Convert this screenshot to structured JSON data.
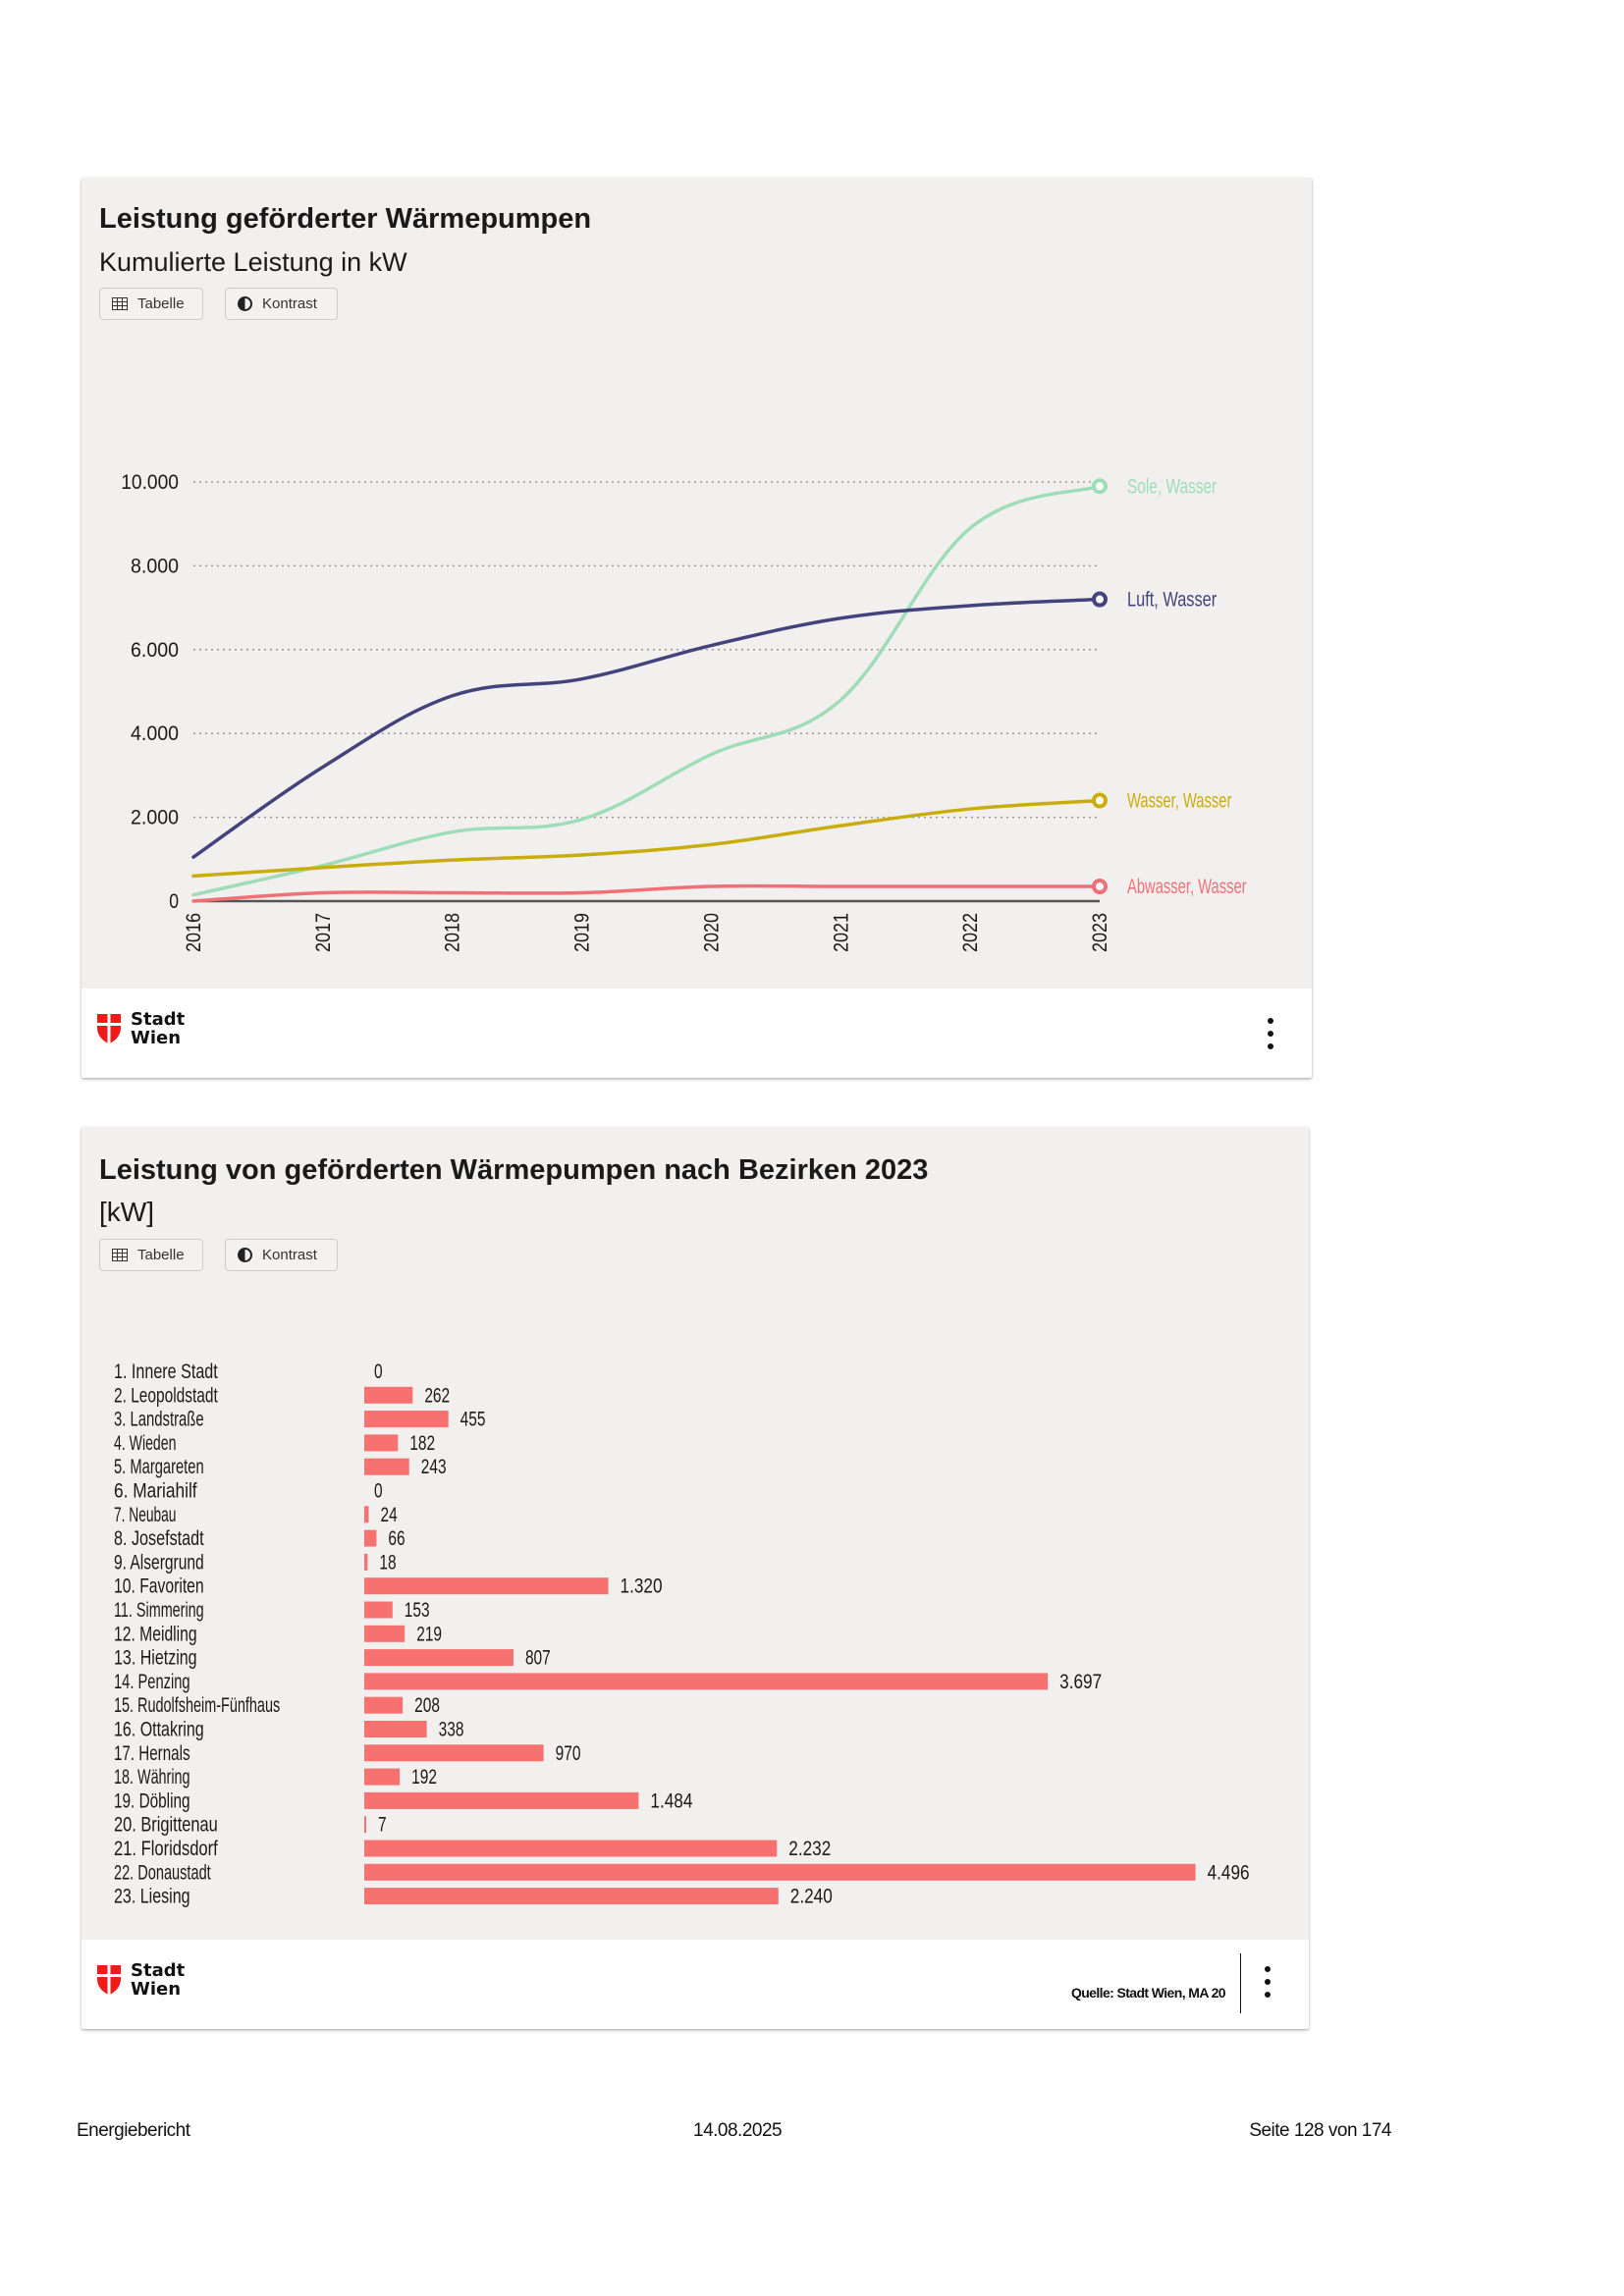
{
  "card1": {
    "title": "Leistung geförderter Wärmepumpen",
    "subtitle": "Kumulierte Leistung in kW",
    "buttons": {
      "table_label": "Tabelle",
      "contrast_label": "Kontrast"
    },
    "logo": {
      "line1": "Stadt",
      "line2": "Wien"
    },
    "menu_icon": "more-vertical-icon"
  },
  "card2": {
    "title": "Leistung von geförderten Wärmepumpen nach Bezirken 2023",
    "subtitle": "[kW]",
    "buttons": {
      "table_label": "Tabelle",
      "contrast_label": "Kontrast"
    },
    "logo": {
      "line1": "Stadt",
      "line2": "Wien"
    },
    "source": "Quelle: Stadt Wien, MA 20",
    "menu_icon": "more-vertical-icon"
  },
  "page_footer": {
    "left": "Energiebericht",
    "center": "14.08.2025",
    "right": "Seite 128 von 174"
  },
  "chart_data": [
    {
      "type": "line",
      "title": "Leistung geförderter Wärmepumpen",
      "subtitle": "Kumulierte Leistung in kW",
      "xlabel": "",
      "ylabel": "",
      "x": [
        "2016",
        "2017",
        "2018",
        "2019",
        "2020",
        "2021",
        "2022",
        "2023"
      ],
      "ylim": [
        0,
        10000
      ],
      "yticks": [
        0,
        2000,
        4000,
        6000,
        8000,
        10000
      ],
      "ytick_labels": [
        "0",
        "2.000",
        "4.000",
        "6.000",
        "8.000",
        "10.000"
      ],
      "grid": true,
      "legend": "end-of-line labels (right)",
      "series": [
        {
          "name": "Sole, Wasser",
          "color": "#9fdcb8",
          "values": [
            150,
            850,
            1650,
            1950,
            3500,
            4800,
            8900,
            9900
          ]
        },
        {
          "name": "Luft, Wasser",
          "color": "#45437c",
          "values": [
            1050,
            3200,
            4900,
            5300,
            6100,
            6750,
            7050,
            7200
          ]
        },
        {
          "name": "Wasser, Wasser",
          "color": "#c9ad0c",
          "values": [
            600,
            800,
            980,
            1100,
            1350,
            1800,
            2200,
            2400
          ]
        },
        {
          "name": "Abwasser, Wasser",
          "color": "#f07078",
          "values": [
            0,
            200,
            200,
            200,
            350,
            350,
            350,
            350
          ]
        }
      ]
    },
    {
      "type": "bar",
      "orientation": "horizontal",
      "title": "Leistung von geförderten Wärmepumpen nach Bezirken 2023",
      "subtitle": "[kW]",
      "bar_color": "#f87171",
      "categories": [
        "1. Innere Stadt",
        "2. Leopoldstadt",
        "3. Landstraße",
        "4. Wieden",
        "5. Margareten",
        "6. Mariahilf",
        "7. Neubau",
        "8. Josefstadt",
        "9. Alsergrund",
        "10. Favoriten",
        "11. Simmering",
        "12. Meidling",
        "13. Hietzing",
        "14. Penzing",
        "15. Rudolfsheim-Fünfhaus",
        "16. Ottakring",
        "17. Hernals",
        "18. Währing",
        "19. Döbling",
        "20. Brigittenau",
        "21. Floridsdorf",
        "22. Donaustadt",
        "23. Liesing"
      ],
      "values": [
        0,
        262,
        455,
        182,
        243,
        0,
        24,
        66,
        18,
        1320,
        153,
        219,
        807,
        3697,
        208,
        338,
        970,
        192,
        1484,
        7,
        2232,
        4496,
        2240
      ],
      "value_labels": [
        "0",
        "262",
        "455",
        "182",
        "243",
        "0",
        "24",
        "66",
        "18",
        "1.320",
        "153",
        "219",
        "807",
        "3.697",
        "208",
        "338",
        "970",
        "192",
        "1.484",
        "7",
        "2.232",
        "4.496",
        "2.240"
      ],
      "source": "Quelle: Stadt Wien, MA 20"
    }
  ]
}
